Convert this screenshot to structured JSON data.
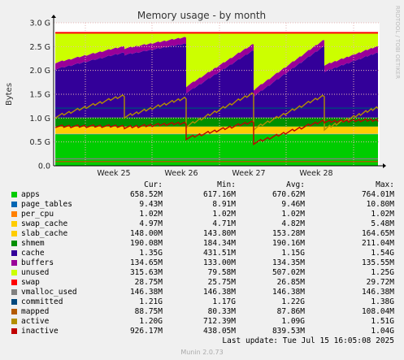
{
  "chart_data": {
    "type": "area",
    "title": "Memory usage - by month",
    "ylabel": "Bytes",
    "watermark": "RRDTOOL / TOBI OETIKER",
    "ylim": [
      0,
      3.0
    ],
    "y_unit": "G",
    "yticks": [
      "0.0",
      "0.5 G",
      "1.0 G",
      "1.5 G",
      "2.0 G",
      "2.5 G",
      "3.0 G"
    ],
    "xticks": [
      "Week 25",
      "Week 26",
      "Week 27",
      "Week 28"
    ],
    "grid": true,
    "series_stacked": [
      {
        "name": "apps",
        "color": "#00cc00",
        "value_g": 0.66
      },
      {
        "name": "page_tables",
        "color": "#0066b3",
        "value_g": 0.009
      },
      {
        "name": "per_cpu",
        "color": "#ff8000",
        "value_g": 0.001
      },
      {
        "name": "swap_cache",
        "color": "#ffcc00",
        "value_g": 0.005
      },
      {
        "name": "slab_cache",
        "color": "#ffcc00",
        "value_g": 0.148
      },
      {
        "name": "shmem",
        "color": "#008f00",
        "value_g": 0.19
      },
      {
        "name": "cache",
        "color": "#330099",
        "segments_g": [
          [
            1.0,
            1.35
          ],
          [
            1.3,
            1.54
          ],
          [
            0.5,
            1.4
          ],
          [
            0.43,
            1.49
          ],
          [
            0.95,
            1.35
          ]
        ]
      },
      {
        "name": "buffers",
        "color": "#990099",
        "value_g": 0.135
      },
      {
        "name": "unused",
        "color": "#ccff00"
      }
    ],
    "series_lines": [
      {
        "name": "swap",
        "color": "#ff0000",
        "value_g": 2.79
      },
      {
        "name": "vmalloc_used",
        "color": "#808080",
        "value_g": 0.146
      },
      {
        "name": "committed",
        "color": "#00487d",
        "value_g": 1.21
      },
      {
        "name": "mapped",
        "color": "#b35a00",
        "value_g": 0.089
      },
      {
        "name": "active",
        "color": "#b38f00",
        "segments_g": [
          [
            1.0,
            1.45
          ],
          [
            1.0,
            1.4
          ],
          [
            0.8,
            1.5
          ],
          [
            0.75,
            1.45
          ],
          [
            0.75,
            1.2
          ]
        ]
      },
      {
        "name": "inactive",
        "color": "#c00000",
        "segments_g": [
          [
            0.8,
            0.8
          ],
          [
            0.78,
            0.87
          ],
          [
            0.55,
            0.9
          ],
          [
            0.45,
            0.92
          ],
          [
            0.9,
            0.93
          ]
        ]
      }
    ]
  },
  "legend_header": {
    "cur": "Cur:",
    "min": "Min:",
    "avg": "Avg:",
    "max": "Max:"
  },
  "legend": [
    {
      "name": "apps",
      "color": "#00cc00",
      "cur": "658.52M",
      "min": "617.16M",
      "avg": "670.62M",
      "max": "764.01M"
    },
    {
      "name": "page_tables",
      "color": "#0066b3",
      "cur": "9.43M",
      "min": "8.91M",
      "avg": "9.46M",
      "max": "10.80M"
    },
    {
      "name": "per_cpu",
      "color": "#ff8000",
      "cur": "1.02M",
      "min": "1.02M",
      "avg": "1.02M",
      "max": "1.02M"
    },
    {
      "name": "swap_cache",
      "color": "#ffcc00",
      "cur": "4.97M",
      "min": "4.71M",
      "avg": "4.82M",
      "max": "5.48M"
    },
    {
      "name": "slab_cache",
      "color": "#ffcc00",
      "cur": "148.00M",
      "min": "143.80M",
      "avg": "153.28M",
      "max": "164.65M"
    },
    {
      "name": "shmem",
      "color": "#008f00",
      "cur": "190.08M",
      "min": "184.34M",
      "avg": "190.16M",
      "max": "211.04M"
    },
    {
      "name": "cache",
      "color": "#330099",
      "cur": "1.35G",
      "min": "431.51M",
      "avg": "1.15G",
      "max": "1.54G"
    },
    {
      "name": "buffers",
      "color": "#990099",
      "cur": "134.65M",
      "min": "133.00M",
      "avg": "134.35M",
      "max": "135.55M"
    },
    {
      "name": "unused",
      "color": "#ccff00",
      "cur": "315.63M",
      "min": "79.58M",
      "avg": "507.02M",
      "max": "1.25G"
    },
    {
      "name": "swap",
      "color": "#ff0000",
      "cur": "28.75M",
      "min": "25.75M",
      "avg": "26.85M",
      "max": "29.72M"
    },
    {
      "name": "vmalloc_used",
      "color": "#808080",
      "cur": "146.38M",
      "min": "146.38M",
      "avg": "146.38M",
      "max": "146.38M"
    },
    {
      "name": "committed",
      "color": "#00487d",
      "cur": "1.21G",
      "min": "1.17G",
      "avg": "1.22G",
      "max": "1.38G"
    },
    {
      "name": "mapped",
      "color": "#b35a00",
      "cur": "88.75M",
      "min": "80.33M",
      "avg": "87.86M",
      "max": "108.04M"
    },
    {
      "name": "active",
      "color": "#b38f00",
      "cur": "1.20G",
      "min": "712.39M",
      "avg": "1.09G",
      "max": "1.51G"
    },
    {
      "name": "inactive",
      "color": "#c00000",
      "cur": "926.17M",
      "min": "438.05M",
      "avg": "839.53M",
      "max": "1.04G"
    }
  ],
  "last_update": "Last update: Tue Jul 15 16:05:08 2025",
  "footer": "Munin 2.0.73"
}
